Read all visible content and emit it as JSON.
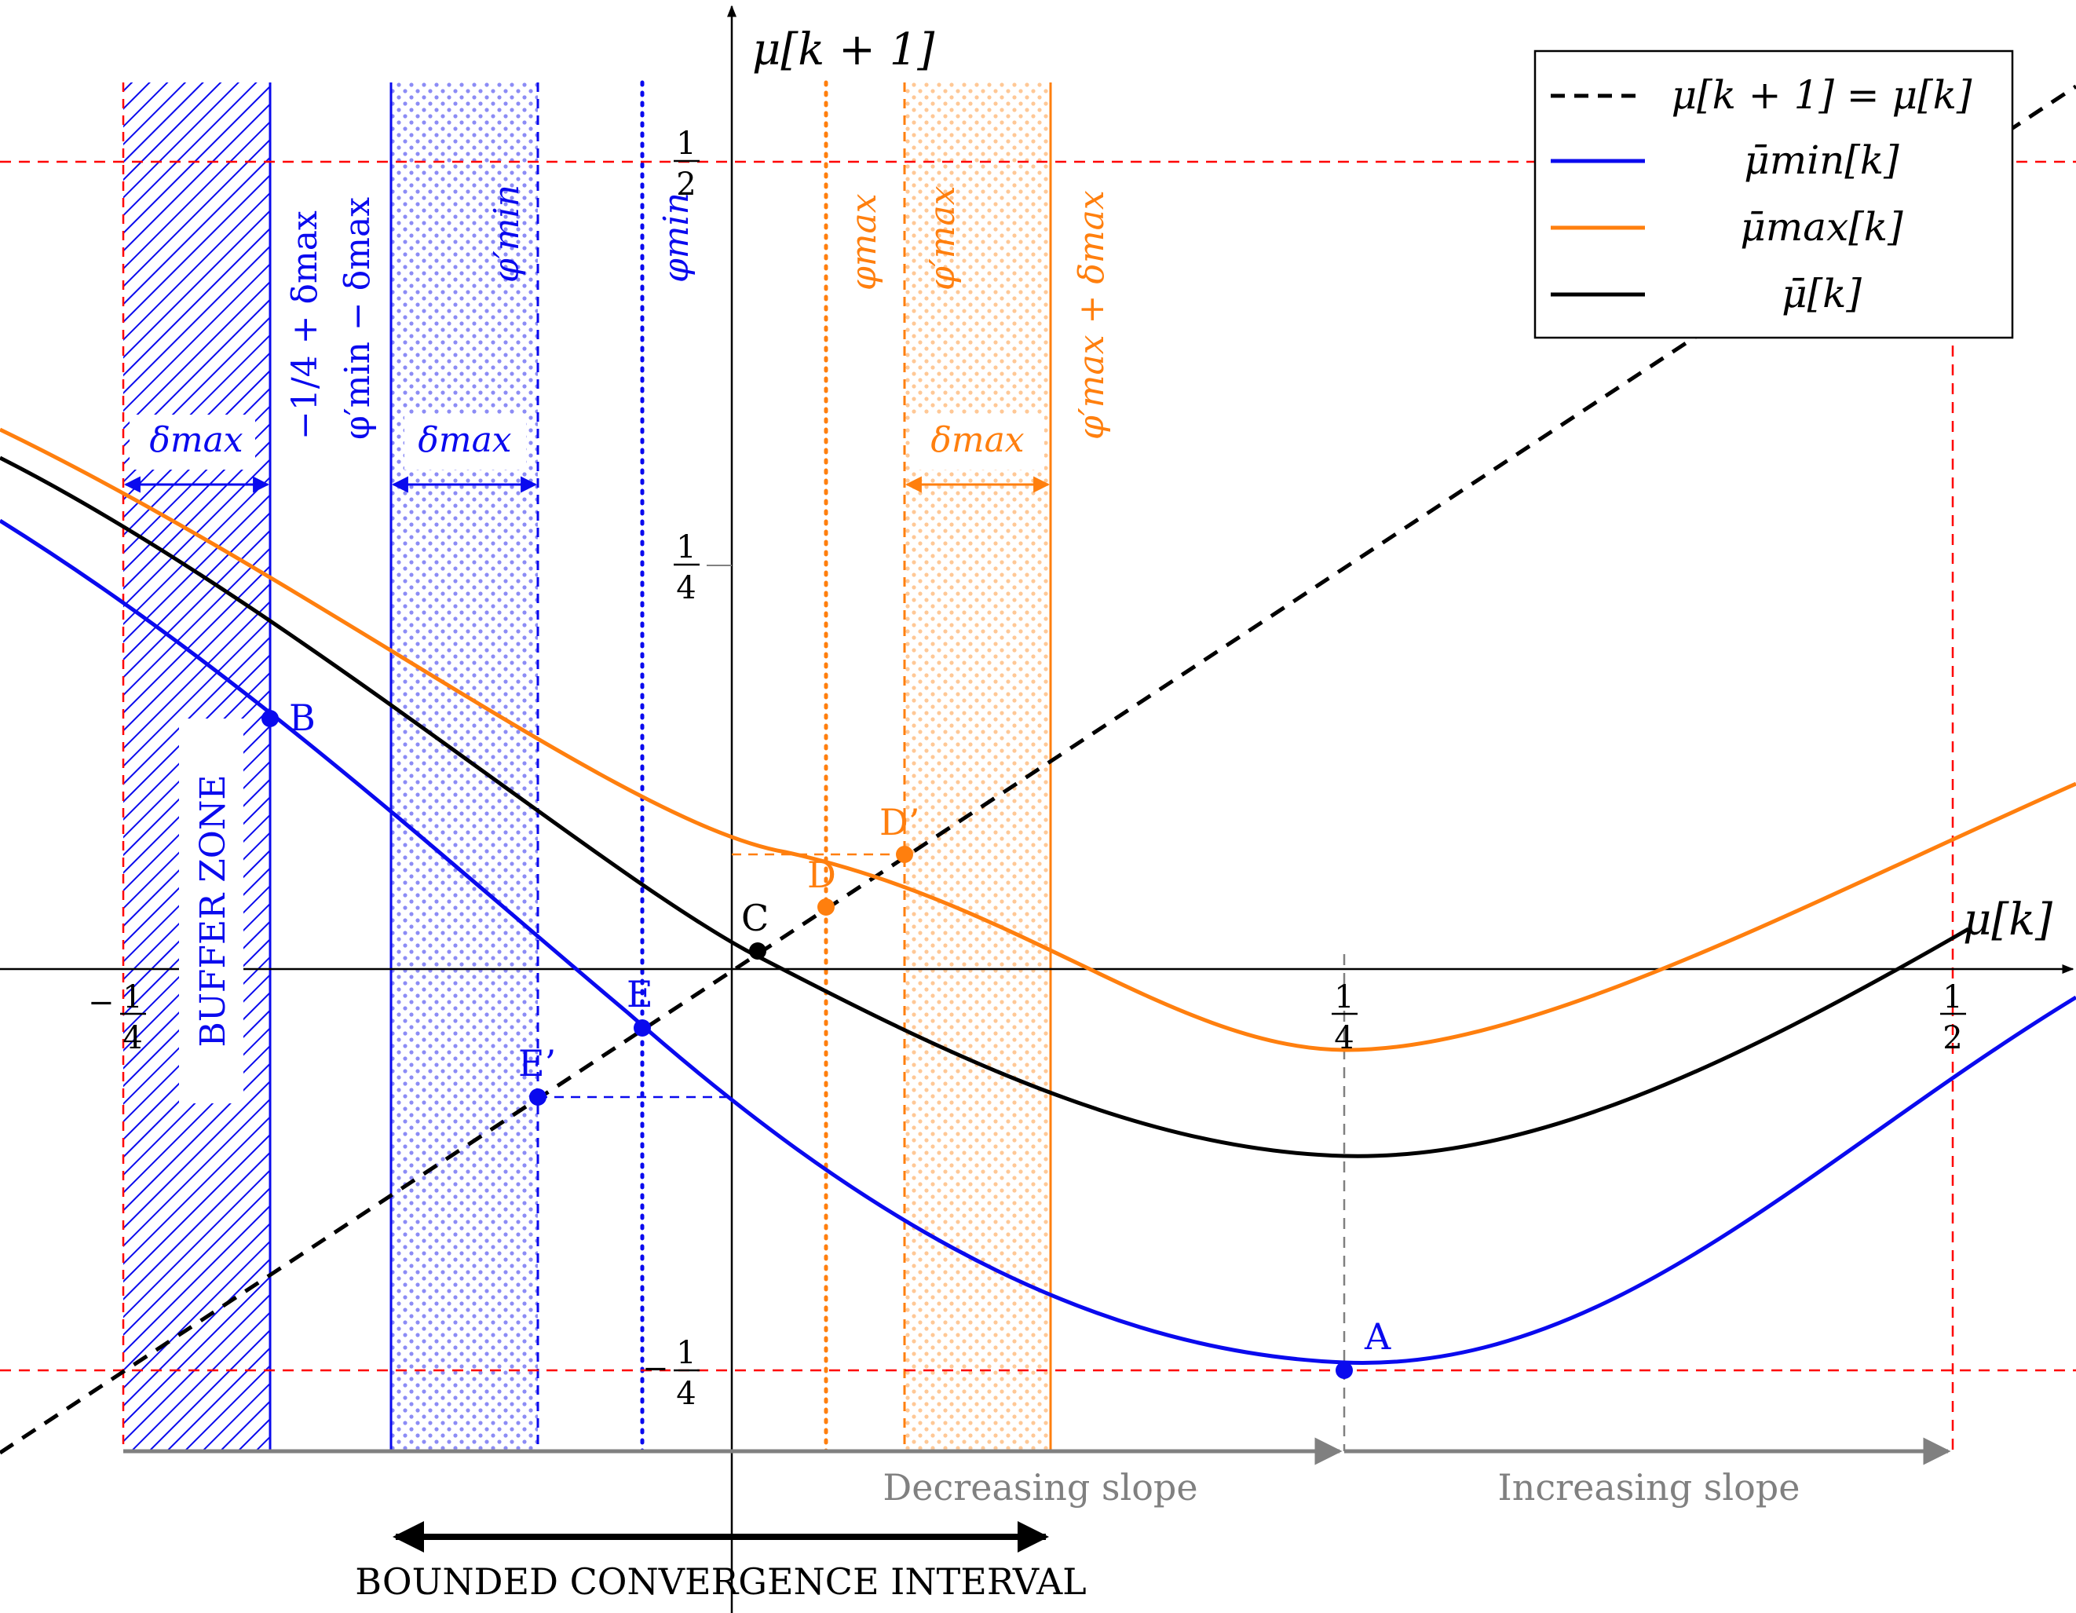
{
  "colors": {
    "blue": "#0a0aee",
    "orange": "#ff7f0e",
    "black": "#000000",
    "red": "#ff0000",
    "gray": "#808080"
  },
  "axes": {
    "x_label": "μ[k]",
    "y_label": "μ[k + 1]",
    "x_ticks": [
      {
        "value": -0.25,
        "label_num": "1",
        "label_den": "4",
        "sign": "−"
      },
      {
        "value": 0.25,
        "label_num": "1",
        "label_den": "4",
        "sign": ""
      },
      {
        "value": 0.5,
        "label_num": "1",
        "label_den": "2",
        "sign": ""
      }
    ],
    "y_ticks": [
      {
        "value": 0.5,
        "label_num": "1",
        "label_den": "2",
        "sign": ""
      },
      {
        "value": 0.25,
        "label_num": "1",
        "label_den": "4",
        "sign": ""
      },
      {
        "value": -0.25,
        "label_num": "1",
        "label_den": "4",
        "sign": "−"
      }
    ]
  },
  "legend": {
    "entries": [
      {
        "label": "μ[k + 1] = μ[k]",
        "style": "dashed",
        "color": "#000000"
      },
      {
        "label": "μ̄min[k]",
        "style": "solid",
        "color": "#0a0aee"
      },
      {
        "label": "μ̄max[k]",
        "style": "solid",
        "color": "#ff7f0e"
      },
      {
        "label": "μ̄[k]",
        "style": "solid",
        "color": "#000000"
      }
    ]
  },
  "region_labels": {
    "buffer_zone": "BUFFER ZONE",
    "delta_max": "δmax",
    "neg_quarter_plus_delta": "−1/4 + δmax",
    "phi_min_prime_minus_delta": "φ′min − δmax",
    "phi_min_prime": "φ′min",
    "phi_min": "φmin",
    "phi_max": "φmax",
    "phi_max_prime": "φ′max",
    "phi_max_prime_plus_delta": "φ′max + δmax"
  },
  "points": [
    {
      "name": "A",
      "x": 0.25,
      "y": -0.245,
      "color": "#0a0aee"
    },
    {
      "name": "B",
      "x": -0.159,
      "y": 0.156,
      "color": "#0a0aee"
    },
    {
      "name": "C",
      "x": 0.01,
      "y": 0.01,
      "color": "#000000"
    },
    {
      "name": "D",
      "x": 0.058,
      "y": 0.04,
      "color": "#ff7f0e"
    },
    {
      "name": "D’",
      "x": 0.106,
      "y": 0.072,
      "color": "#ff7f0e"
    },
    {
      "name": "E",
      "x": -0.055,
      "y": -0.035,
      "color": "#0a0aee"
    },
    {
      "name": "E’",
      "x": -0.12,
      "y": -0.079,
      "color": "#0a0aee"
    }
  ],
  "annotations": {
    "decreasing_slope": "Decreasing slope",
    "increasing_slope": "Increasing slope",
    "bounded_interval": "BOUNDED CONVERGENCE INTERVAL"
  }
}
